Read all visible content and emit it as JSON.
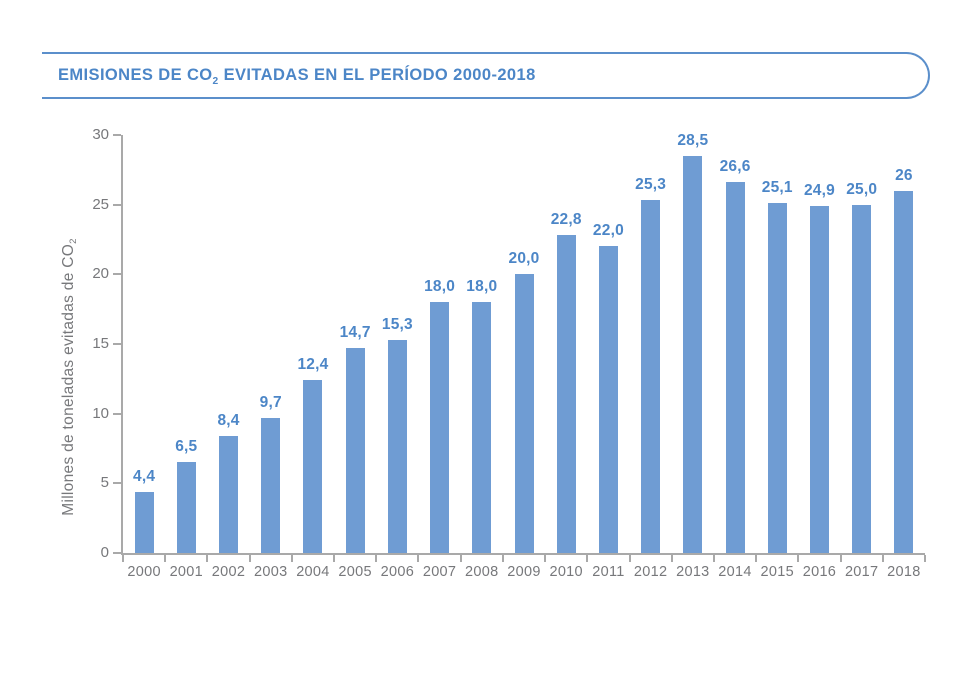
{
  "header": {
    "title_pre": "EMISIONES DE CO",
    "title_sub": "2",
    "title_post": " EVITADAS EN EL PERÍODO 2000-2018"
  },
  "yaxis": {
    "label_pre": "Millones de toneladas evitadas de CO",
    "label_sub": "2"
  },
  "chart_data": {
    "type": "bar",
    "title": "EMISIONES DE CO2 EVITADAS EN EL PERÍODO 2000-2018",
    "xlabel": "",
    "ylabel": "Millones de toneladas evitadas de CO2",
    "categories": [
      "2000",
      "2001",
      "2002",
      "2003",
      "2004",
      "2005",
      "2006",
      "2007",
      "2008",
      "2009",
      "2010",
      "2011",
      "2012",
      "2013",
      "2014",
      "2015",
      "2016",
      "2017",
      "2018"
    ],
    "values": [
      4.4,
      6.5,
      8.4,
      9.7,
      12.4,
      14.7,
      15.3,
      18.0,
      18.0,
      20.0,
      22.8,
      22.0,
      25.3,
      28.5,
      26.6,
      25.1,
      24.9,
      25.0,
      26.0
    ],
    "value_labels": [
      "4,4",
      "6,5",
      "8,4",
      "9,7",
      "12,4",
      "14,7",
      "15,3",
      "18,0",
      "18,0",
      "20,0",
      "22,8",
      "22,0",
      "25,3",
      "28,5",
      "26,6",
      "25,1",
      "24,9",
      "25,0",
      "26"
    ],
    "ylim": [
      0,
      30
    ],
    "yticks": [
      0,
      5,
      10,
      15,
      20,
      25,
      30
    ],
    "grid": false,
    "legend": false,
    "colors": {
      "bar": "#6f9cd3",
      "value_label": "#4c86c7",
      "accent": "#4c86c7",
      "pill_border": "#5b8fcb",
      "axis": "#a9a9a9",
      "tick_label": "#77787b"
    }
  }
}
